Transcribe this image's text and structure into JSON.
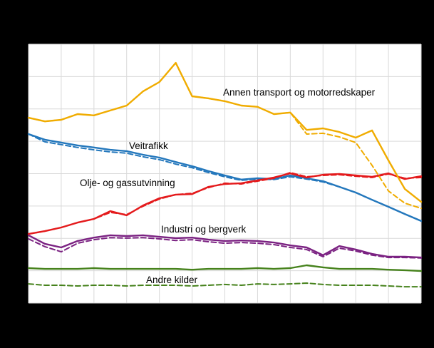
{
  "figure": {
    "background": "#000000",
    "plot_background": "#ffffff",
    "grid_color": "#d9d9d9"
  },
  "annotations": [
    {
      "text": "Annen transport og motorredskaper"
    },
    {
      "text": "Veitrafikk"
    },
    {
      "text": "Olje- og gassutvinning"
    },
    {
      "text": "Industri og bergverk"
    },
    {
      "text": "Andre kilder"
    }
  ],
  "chart_data": {
    "type": "line",
    "note": "No axis tick labels are visible in the image; x is an index of 25 evenly spaced points and y values are estimated as percent of plot height (0-100). Each source has a solid and a dashed series of the same color.",
    "x": [
      0,
      1,
      2,
      3,
      4,
      5,
      6,
      7,
      8,
      9,
      10,
      11,
      12,
      13,
      14,
      15,
      16,
      17,
      18,
      19,
      20,
      21,
      22,
      23,
      24
    ],
    "xlim": [
      0,
      24
    ],
    "ylim": [
      0,
      100
    ],
    "grid": true,
    "legend_position": "none (inline labels)",
    "series": [
      {
        "name": "Andre kilder (stiplet)",
        "color": "#46821c",
        "dash": true,
        "values": [
          7.4,
          6.9,
          6.9,
          6.6,
          6.9,
          6.9,
          6.6,
          6.9,
          6.9,
          6.9,
          6.6,
          6.9,
          7.2,
          6.9,
          7.4,
          7.2,
          7.4,
          7.7,
          7.2,
          6.9,
          6.9,
          6.9,
          6.6,
          6.3,
          6.3
        ]
      },
      {
        "name": "Andre kilder",
        "color": "#46821c",
        "dash": false,
        "values": [
          13.5,
          13.2,
          13.2,
          13.2,
          13.5,
          13.2,
          13.2,
          13.2,
          13.2,
          13.2,
          12.9,
          13.2,
          13.2,
          13.2,
          13.5,
          13.2,
          13.5,
          14.6,
          13.8,
          13.2,
          13.2,
          13.2,
          12.9,
          12.7,
          12.4
        ]
      },
      {
        "name": "Industri og bergverk (stiplet)",
        "color": "#7b2282",
        "dash": true,
        "values": [
          24.8,
          21.8,
          19.8,
          23.1,
          24.5,
          25.3,
          25.1,
          25.3,
          24.8,
          24.2,
          24.5,
          23.7,
          23.1,
          23.4,
          23.1,
          22.6,
          21.5,
          20.7,
          17.9,
          21.2,
          20.1,
          18.5,
          17.6,
          17.6,
          17.4
        ]
      },
      {
        "name": "Industri og bergverk",
        "color": "#7b2282",
        "dash": false,
        "values": [
          26.2,
          22.9,
          21.5,
          24.0,
          25.3,
          26.2,
          25.9,
          26.2,
          25.6,
          25.1,
          25.3,
          24.5,
          24.0,
          24.2,
          24.0,
          23.4,
          22.3,
          21.5,
          18.5,
          22.0,
          20.7,
          19.0,
          17.9,
          17.9,
          17.6
        ]
      },
      {
        "name": "Veitrafikk (stiplet)",
        "color": "#2377bc",
        "dash": true,
        "values": [
          65.3,
          62.3,
          61.2,
          60.1,
          59.2,
          58.4,
          57.9,
          56.5,
          55.4,
          53.7,
          52.3,
          50.4,
          48.8,
          47.4,
          47.9,
          47.7,
          48.8,
          47.9,
          46.8,
          44.9,
          42.7,
          39.9,
          37.2,
          34.4,
          31.7
        ]
      },
      {
        "name": "Veitrafikk",
        "color": "#2377bc",
        "dash": false,
        "values": [
          65.3,
          63.1,
          62.0,
          60.9,
          60.1,
          59.2,
          58.7,
          57.3,
          56.2,
          54.5,
          52.9,
          51.0,
          49.3,
          47.7,
          48.2,
          47.9,
          49.3,
          48.2,
          47.1,
          44.9,
          42.7,
          39.9,
          37.2,
          34.4,
          31.7
        ]
      },
      {
        "name": "Olje- og gassutvinning (stiplet)",
        "color": "#e41a1c",
        "dash": true,
        "values": [
          26.7,
          27.8,
          29.2,
          31.1,
          32.5,
          35.0,
          34.2,
          37.4,
          40.2,
          41.9,
          42.4,
          44.6,
          46.3,
          46.0,
          47.1,
          48.2,
          50.4,
          48.8,
          49.3,
          49.6,
          49.0,
          48.5,
          49.9,
          48.2,
          48.5
        ]
      },
      {
        "name": "Olje- og gassutvinning",
        "color": "#e41a1c",
        "dash": false,
        "values": [
          26.7,
          27.8,
          29.2,
          31.1,
          32.5,
          35.5,
          33.9,
          37.7,
          40.5,
          41.9,
          42.1,
          44.9,
          46.0,
          46.3,
          47.4,
          48.5,
          50.1,
          48.5,
          49.6,
          49.9,
          49.3,
          48.8,
          50.1,
          47.9,
          49.0
        ]
      },
      {
        "name": "Annen transport og motorredskaper (stiplet)",
        "color": "#f0ac00",
        "dash": true,
        "values": [
          71.6,
          70.2,
          70.8,
          73.0,
          72.5,
          74.4,
          76.3,
          81.8,
          85.4,
          92.8,
          79.9,
          79.1,
          78.0,
          76.3,
          75.8,
          73.0,
          73.6,
          65.3,
          65.6,
          64.2,
          62.0,
          53.2,
          43.3,
          38.6,
          36.6
        ]
      },
      {
        "name": "Annen transport og motorredskaper",
        "color": "#f0ac00",
        "dash": false,
        "values": [
          71.6,
          70.2,
          70.8,
          73.0,
          72.5,
          74.4,
          76.3,
          81.8,
          85.4,
          92.8,
          79.9,
          79.1,
          78.0,
          76.3,
          75.8,
          73.0,
          73.6,
          66.9,
          67.5,
          66.1,
          63.9,
          66.7,
          55.1,
          44.1,
          39.1
        ]
      }
    ]
  }
}
